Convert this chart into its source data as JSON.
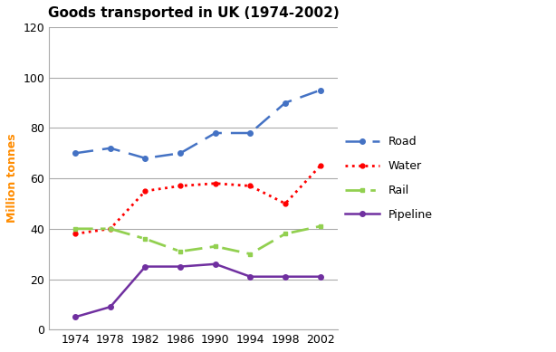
{
  "title": "Goods transported in UK (1974-2002)",
  "ylabel": "Million tonnes",
  "years": [
    1974,
    1978,
    1982,
    1986,
    1990,
    1994,
    1998,
    2002
  ],
  "road": [
    70,
    72,
    68,
    70,
    78,
    78,
    90,
    95
  ],
  "water": [
    38,
    40,
    55,
    57,
    58,
    57,
    50,
    65
  ],
  "rail": [
    40,
    40,
    36,
    31,
    33,
    30,
    38,
    41
  ],
  "pipeline": [
    5,
    9,
    25,
    25,
    26,
    21,
    21,
    21
  ],
  "road_color": "#4472C4",
  "water_color": "#FF0000",
  "rail_color": "#92D050",
  "pipeline_color": "#7030A0",
  "ylim": [
    0,
    120
  ],
  "yticks": [
    0,
    20,
    40,
    60,
    80,
    100,
    120
  ],
  "grid_color": "#AAAAAA",
  "background_color": "#FFFFFF",
  "title_fontsize": 11,
  "axis_fontsize": 9,
  "legend_fontsize": 9,
  "ylabel_color": "#FF8C00"
}
